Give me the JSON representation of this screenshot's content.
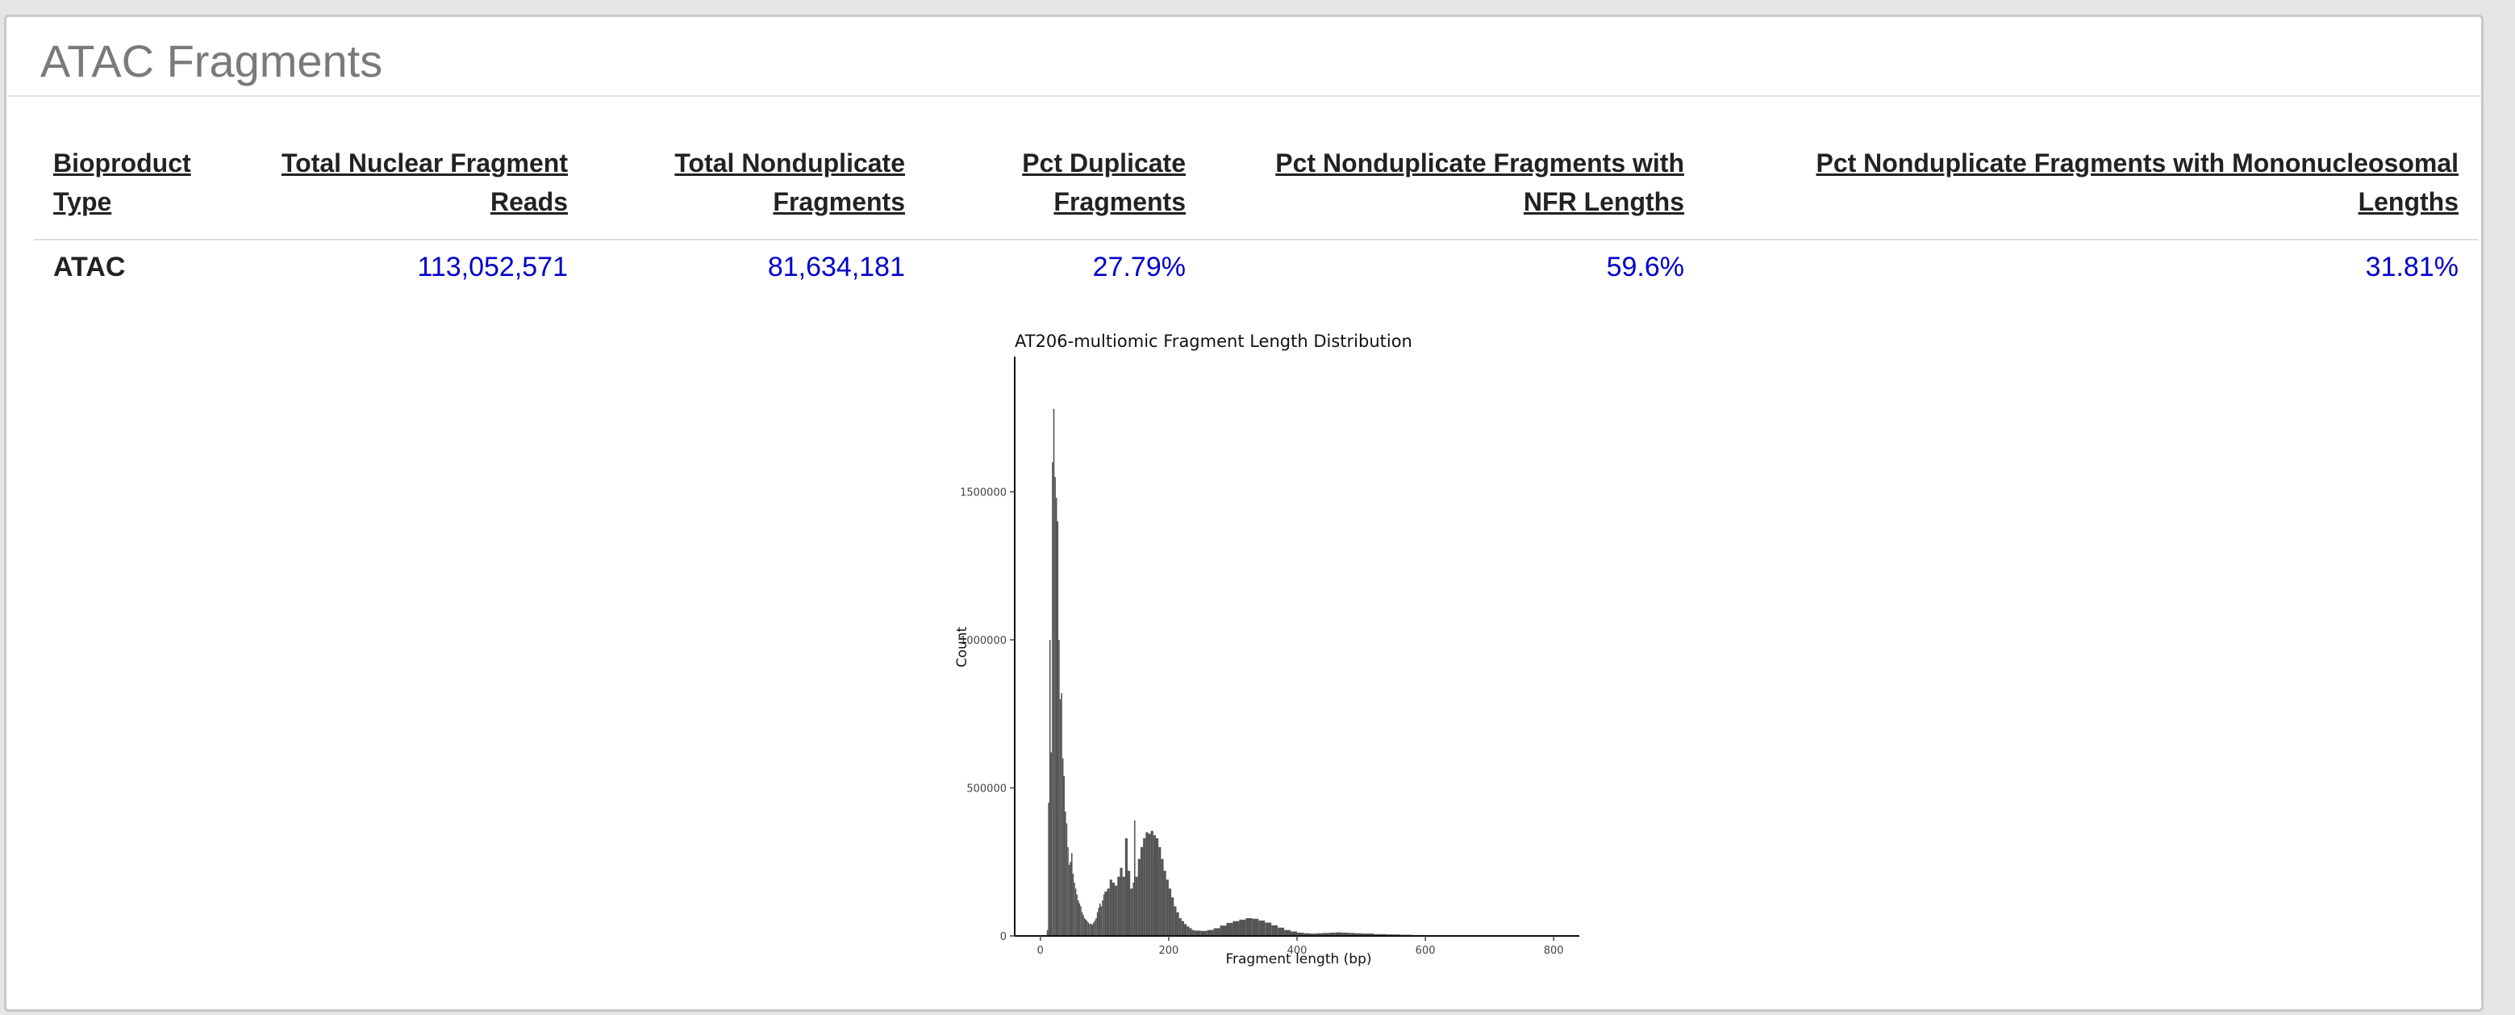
{
  "section": {
    "title": "ATAC Fragments"
  },
  "table": {
    "headers": [
      "Bioproduct Type",
      "Total Nuclear Fragment Reads",
      "Total Nonduplicate Fragments",
      "Pct Duplicate Fragments",
      "Pct Nonduplicate Fragments with NFR Lengths",
      "Pct Nonduplicate Fragments with Mononucleosomal Lengths"
    ],
    "rows": [
      [
        "ATAC",
        "113,052,571",
        "81,634,181",
        "27.79%",
        "59.6%",
        "31.81%"
      ]
    ]
  },
  "colors": {
    "value_text": "#0000cc",
    "bar_fill": "#555555"
  },
  "chart_data": {
    "type": "bar",
    "title": "AT206-multiomic Fragment Length Distribution",
    "xlabel": "Fragment length (bp)",
    "ylabel": "Count",
    "xlim": [
      -40,
      840
    ],
    "ylim": [
      0,
      1800000
    ],
    "xticks": [
      0,
      200,
      400,
      600,
      800
    ],
    "yticks": [
      0,
      500000,
      1000000,
      1500000
    ],
    "grid": false,
    "x": [
      10,
      12,
      14,
      16,
      18,
      20,
      22,
      24,
      26,
      28,
      30,
      32,
      34,
      36,
      38,
      40,
      42,
      44,
      46,
      48,
      50,
      52,
      54,
      56,
      58,
      60,
      62,
      64,
      66,
      68,
      70,
      72,
      74,
      76,
      78,
      80,
      82,
      84,
      86,
      88,
      90,
      92,
      94,
      96,
      98,
      100,
      104,
      108,
      112,
      116,
      120,
      124,
      128,
      132,
      136,
      140,
      144,
      146,
      148,
      152,
      156,
      160,
      164,
      168,
      172,
      176,
      180,
      184,
      188,
      192,
      196,
      200,
      204,
      208,
      212,
      216,
      220,
      224,
      228,
      232,
      236,
      240,
      250,
      260,
      270,
      280,
      290,
      300,
      310,
      320,
      330,
      340,
      350,
      360,
      370,
      380,
      390,
      400,
      410,
      420,
      430,
      440,
      450,
      460,
      470,
      480,
      490,
      500,
      520,
      540,
      560,
      580,
      600,
      620,
      640,
      660,
      680,
      700,
      720,
      740,
      760,
      780,
      800
    ],
    "values": [
      20000,
      450000,
      1000000,
      620000,
      1600000,
      1780000,
      1550000,
      1480000,
      1400000,
      1000000,
      800000,
      820000,
      600000,
      540000,
      420000,
      380000,
      300000,
      240000,
      250000,
      280000,
      210000,
      180000,
      160000,
      140000,
      120000,
      110000,
      100000,
      80000,
      70000,
      60000,
      55000,
      50000,
      45000,
      40000,
      42000,
      38000,
      45000,
      52000,
      60000,
      80000,
      95000,
      110000,
      100000,
      120000,
      140000,
      150000,
      160000,
      190000,
      180000,
      170000,
      200000,
      230000,
      200000,
      330000,
      220000,
      160000,
      180000,
      390000,
      200000,
      260000,
      300000,
      330000,
      350000,
      345000,
      355000,
      340000,
      330000,
      300000,
      260000,
      220000,
      190000,
      160000,
      130000,
      100000,
      80000,
      60000,
      50000,
      40000,
      32000,
      26000,
      20000,
      18000,
      17000,
      20000,
      26000,
      35000,
      44000,
      50000,
      55000,
      60000,
      58000,
      52000,
      45000,
      36000,
      28000,
      20000,
      15000,
      11000,
      9000,
      8000,
      9000,
      10000,
      11000,
      12000,
      11000,
      10000,
      9000,
      8000,
      6000,
      5000,
      4000,
      3000,
      2500,
      2000,
      1500,
      1200,
      1000,
      800,
      600,
      500,
      400,
      300,
      200
    ]
  }
}
